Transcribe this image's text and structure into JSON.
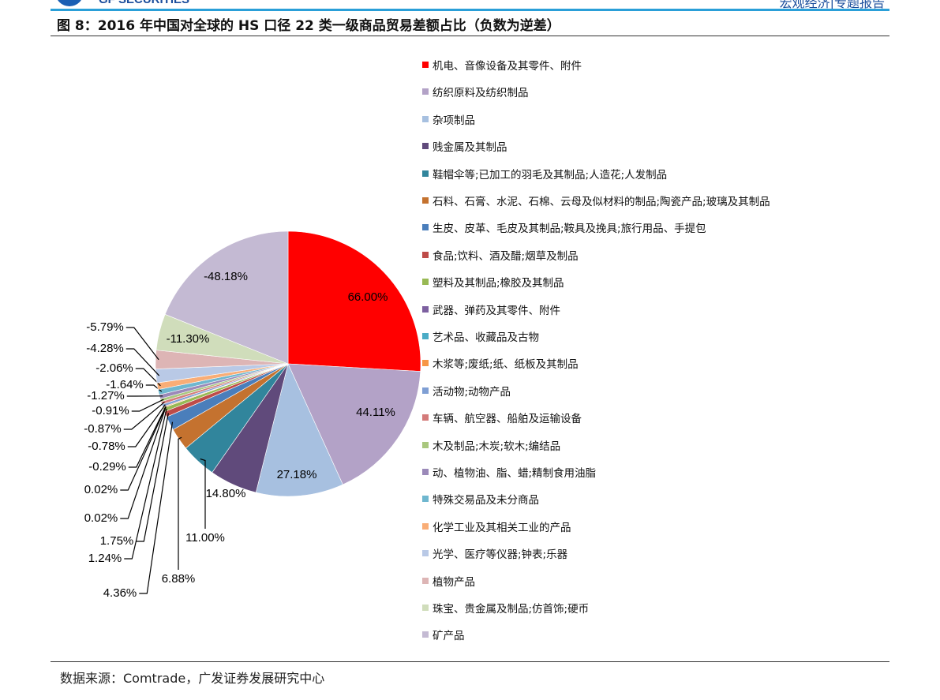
{
  "header": {
    "logo_text": "GF SECURITIES",
    "report_type": "宏观经济|专题报告",
    "title": "图 8：2016 年中国对全球的 HS 口径 22 类一级商品贸易差额占比（负数为逆差）"
  },
  "footer": {
    "source": "数据来源：Comtrade，广发证券发展研究中心"
  },
  "chart_data": {
    "type": "pie",
    "title": "图 8：2016 年中国对全球的 HS 口径 22 类一级商品贸易差额占比（负数为逆差）",
    "legend_placement": "right",
    "start": "top, clockwise",
    "slice_size": "absolute value",
    "categories": [
      "机电、音像设备及其零件、附件",
      "纺织原料及纺织制品",
      "杂项制品",
      "贱金属及其制品",
      "鞋帽伞等;已加工的羽毛及其制品;人造花;人发制品",
      "石料、石膏、水泥、石棉、云母及似材料的制品;陶瓷产品;玻璃及其制品",
      "生皮、皮革、毛皮及其制品;鞍具及挽具;旅行用品、手提包",
      "食品;饮料、酒及醋;烟草及制品",
      "塑料及其制品;橡胶及其制品",
      "武器、弹药及其零件、附件",
      "艺术品、收藏品及古物",
      "木浆等;废纸;纸、纸板及其制品",
      "活动物;动物产品",
      "车辆、航空器、船舶及运输设备",
      "木及制品;木炭;软木;编结品",
      "动、植物油、脂、蜡;精制食用油脂",
      "特殊交易品及未分商品",
      "化学工业及其相关工业的产品",
      "光学、医疗等仪器;钟表;乐器",
      "植物产品",
      "珠宝、贵金属及制品;仿首饰;硬币",
      "矿产品"
    ],
    "values": [
      66.0,
      44.11,
      27.18,
      14.8,
      11.0,
      6.88,
      4.36,
      1.75,
      1.24,
      0.02,
      0.02,
      -0.29,
      -0.78,
      -0.87,
      -0.91,
      -1.27,
      -1.64,
      -2.06,
      -4.28,
      -5.79,
      -11.3,
      -48.18
    ],
    "labels": [
      "66.00%",
      "44.11%",
      "27.18%",
      "14.80%",
      "11.00%",
      "6.88%",
      "4.36%",
      "1.75%",
      "1.24%",
      "0.02%",
      "0.02%",
      "-0.29%",
      "-0.78%",
      "-0.87%",
      "-0.91%",
      "-1.27%",
      "-1.64%",
      "-2.06%",
      "-4.28%",
      "-5.79%",
      "-11.30%",
      "-48.18%"
    ],
    "colors": [
      "#FF0000",
      "#B3A2C7",
      "#A7C0E0",
      "#604A7B",
      "#31859C",
      "#C4722F",
      "#4A7EBB",
      "#BE4B48",
      "#98B954",
      "#7D60A0",
      "#4BACC6",
      "#F79646",
      "#7F9FD4",
      "#D47B7A",
      "#A9C77E",
      "#9B89B9",
      "#6FB7CF",
      "#F9AD76",
      "#B9C9E6",
      "#DDB5B5",
      "#D0DDBB",
      "#C4BAD3"
    ]
  }
}
